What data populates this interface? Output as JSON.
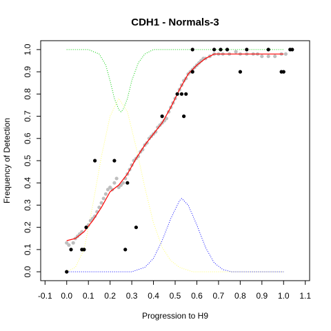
{
  "chart_data": {
    "type": "scatter",
    "title": "CDH1 - Normals-3",
    "xlabel": "Progression to H9",
    "ylabel": "Frequency of Detection",
    "xlim": [
      -0.12,
      1.12
    ],
    "ylim": [
      -0.04,
      1.04
    ],
    "x_ticks": [
      "-0.1",
      "0.0",
      "0.1",
      "0.2",
      "0.3",
      "0.4",
      "0.5",
      "0.6",
      "0.7",
      "0.8",
      "0.9",
      "1.0",
      "1.1"
    ],
    "y_ticks": [
      "0.0",
      "0.1",
      "0.2",
      "0.3",
      "0.4",
      "0.5",
      "0.6",
      "0.7",
      "0.8",
      "0.9",
      "1.0"
    ],
    "grid": false,
    "legend": "none",
    "colors": {
      "observed": "#000000",
      "smoothed": "#bebebe",
      "fit": "#ff0000",
      "green_curve": "#00cc00",
      "yellow_curve": "#ffff66",
      "blue_curve": "#0000ff"
    },
    "series": [
      {
        "kind": "points",
        "color": "#000000",
        "points": [
          [
            0.0,
            0.0
          ],
          [
            0.02,
            0.1
          ],
          [
            0.07,
            0.1
          ],
          [
            0.08,
            0.1
          ],
          [
            0.09,
            0.2
          ],
          [
            0.13,
            0.5
          ],
          [
            0.22,
            0.5
          ],
          [
            0.27,
            0.1
          ],
          [
            0.28,
            0.4
          ],
          [
            0.32,
            0.2
          ],
          [
            0.44,
            0.7
          ],
          [
            0.51,
            0.8
          ],
          [
            0.53,
            0.8
          ],
          [
            0.54,
            0.7
          ],
          [
            0.55,
            0.8
          ],
          [
            0.58,
            0.9
          ],
          [
            0.58,
            1.0
          ],
          [
            0.68,
            1.0
          ],
          [
            0.71,
            1.0
          ],
          [
            0.74,
            1.0
          ],
          [
            0.8,
            0.9
          ],
          [
            0.83,
            1.0
          ],
          [
            0.93,
            1.0
          ],
          [
            0.99,
            0.9
          ],
          [
            1.0,
            0.9
          ],
          [
            1.03,
            1.0
          ],
          [
            1.04,
            1.0
          ]
        ]
      },
      {
        "kind": "smoothed-points",
        "color": "#bebebe",
        "points": [
          [
            0.0,
            0.13
          ],
          [
            0.01,
            0.12
          ],
          [
            0.03,
            0.13
          ],
          [
            0.04,
            0.15
          ],
          [
            0.05,
            0.16
          ],
          [
            0.06,
            0.17
          ],
          [
            0.07,
            0.18
          ],
          [
            0.09,
            0.2
          ],
          [
            0.1,
            0.21
          ],
          [
            0.11,
            0.23
          ],
          [
            0.12,
            0.24
          ],
          [
            0.13,
            0.25
          ],
          [
            0.14,
            0.27
          ],
          [
            0.15,
            0.29
          ],
          [
            0.16,
            0.31
          ],
          [
            0.17,
            0.33
          ],
          [
            0.18,
            0.35
          ],
          [
            0.19,
            0.37
          ],
          [
            0.2,
            0.38
          ],
          [
            0.21,
            0.37
          ],
          [
            0.22,
            0.4
          ],
          [
            0.23,
            0.42
          ],
          [
            0.24,
            0.38
          ],
          [
            0.25,
            0.39
          ],
          [
            0.26,
            0.4
          ],
          [
            0.27,
            0.42
          ],
          [
            0.28,
            0.44
          ],
          [
            0.29,
            0.46
          ],
          [
            0.3,
            0.48
          ],
          [
            0.31,
            0.5
          ],
          [
            0.32,
            0.51
          ],
          [
            0.33,
            0.52
          ],
          [
            0.34,
            0.54
          ],
          [
            0.35,
            0.55
          ],
          [
            0.36,
            0.57
          ],
          [
            0.37,
            0.58
          ],
          [
            0.38,
            0.6
          ],
          [
            0.39,
            0.61
          ],
          [
            0.4,
            0.62
          ],
          [
            0.41,
            0.63
          ],
          [
            0.42,
            0.65
          ],
          [
            0.43,
            0.66
          ],
          [
            0.44,
            0.67
          ],
          [
            0.45,
            0.68
          ],
          [
            0.46,
            0.69
          ],
          [
            0.47,
            0.72
          ],
          [
            0.48,
            0.74
          ],
          [
            0.49,
            0.76
          ],
          [
            0.5,
            0.78
          ],
          [
            0.51,
            0.8
          ],
          [
            0.52,
            0.82
          ],
          [
            0.53,
            0.84
          ],
          [
            0.54,
            0.86
          ],
          [
            0.55,
            0.87
          ],
          [
            0.56,
            0.89
          ],
          [
            0.57,
            0.9
          ],
          [
            0.58,
            0.91
          ],
          [
            0.59,
            0.92
          ],
          [
            0.6,
            0.93
          ],
          [
            0.61,
            0.94
          ],
          [
            0.62,
            0.95
          ],
          [
            0.63,
            0.96
          ],
          [
            0.64,
            0.96
          ],
          [
            0.66,
            0.97
          ],
          [
            0.68,
            0.98
          ],
          [
            0.7,
            0.98
          ],
          [
            0.72,
            0.98
          ],
          [
            0.75,
            0.98
          ],
          [
            0.78,
            0.99
          ],
          [
            0.8,
            0.98
          ],
          [
            0.83,
            0.98
          ],
          [
            0.86,
            0.98
          ],
          [
            0.88,
            0.98
          ],
          [
            0.9,
            0.97
          ],
          [
            0.93,
            0.97
          ],
          [
            0.96,
            0.97
          ],
          [
            0.99,
            0.98
          ],
          [
            1.01,
            0.98
          ]
        ]
      },
      {
        "kind": "line",
        "color": "#ff0000",
        "points": [
          [
            0.0,
            0.14
          ],
          [
            0.04,
            0.15
          ],
          [
            0.08,
            0.18
          ],
          [
            0.12,
            0.23
          ],
          [
            0.16,
            0.29
          ],
          [
            0.2,
            0.36
          ],
          [
            0.24,
            0.39
          ],
          [
            0.28,
            0.44
          ],
          [
            0.32,
            0.51
          ],
          [
            0.36,
            0.57
          ],
          [
            0.4,
            0.62
          ],
          [
            0.44,
            0.67
          ],
          [
            0.48,
            0.74
          ],
          [
            0.52,
            0.82
          ],
          [
            0.56,
            0.89
          ],
          [
            0.6,
            0.93
          ],
          [
            0.64,
            0.96
          ],
          [
            0.68,
            0.98
          ],
          [
            0.75,
            0.98
          ],
          [
            0.85,
            0.98
          ],
          [
            0.95,
            0.98
          ],
          [
            1.0,
            0.98
          ]
        ]
      },
      {
        "kind": "dotted-line",
        "color": "#00cc00",
        "points": [
          [
            0.0,
            1.0
          ],
          [
            0.1,
            1.0
          ],
          [
            0.15,
            0.98
          ],
          [
            0.18,
            0.93
          ],
          [
            0.2,
            0.86
          ],
          [
            0.22,
            0.78
          ],
          [
            0.24,
            0.73
          ],
          [
            0.25,
            0.72
          ],
          [
            0.26,
            0.73
          ],
          [
            0.28,
            0.78
          ],
          [
            0.3,
            0.86
          ],
          [
            0.33,
            0.94
          ],
          [
            0.36,
            0.98
          ],
          [
            0.4,
            1.0
          ],
          [
            0.6,
            1.0
          ],
          [
            0.8,
            1.0
          ],
          [
            1.0,
            1.0
          ]
        ]
      },
      {
        "kind": "dotted-line",
        "color": "#ffff66",
        "points": [
          [
            0.0,
            0.0
          ],
          [
            0.04,
            0.02
          ],
          [
            0.08,
            0.1
          ],
          [
            0.12,
            0.3
          ],
          [
            0.16,
            0.52
          ],
          [
            0.2,
            0.7
          ],
          [
            0.24,
            0.78
          ],
          [
            0.28,
            0.72
          ],
          [
            0.32,
            0.56
          ],
          [
            0.36,
            0.38
          ],
          [
            0.4,
            0.22
          ],
          [
            0.44,
            0.11
          ],
          [
            0.48,
            0.05
          ],
          [
            0.52,
            0.02
          ],
          [
            0.58,
            0.0
          ],
          [
            0.7,
            0.0
          ],
          [
            1.0,
            0.0
          ]
        ]
      },
      {
        "kind": "dotted-line",
        "color": "#0000ff",
        "points": [
          [
            0.0,
            0.0
          ],
          [
            0.3,
            0.0
          ],
          [
            0.36,
            0.02
          ],
          [
            0.4,
            0.06
          ],
          [
            0.44,
            0.14
          ],
          [
            0.48,
            0.24
          ],
          [
            0.52,
            0.32
          ],
          [
            0.53,
            0.33
          ],
          [
            0.56,
            0.3
          ],
          [
            0.6,
            0.21
          ],
          [
            0.64,
            0.11
          ],
          [
            0.68,
            0.04
          ],
          [
            0.72,
            0.01
          ],
          [
            0.76,
            0.0
          ],
          [
            1.0,
            0.0
          ]
        ]
      }
    ]
  }
}
